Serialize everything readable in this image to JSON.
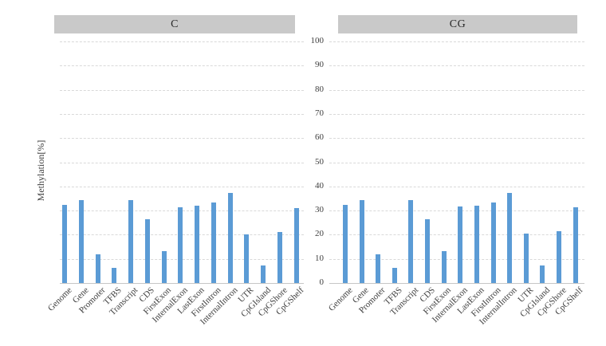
{
  "colors": {
    "bar": "#5B9BD5",
    "header_bg": "#C9C9C9",
    "grid": "#D9D9D9",
    "axis_line": "#C6C6C6",
    "text": "#404040"
  },
  "chart_data": {
    "type": "bar",
    "title": "",
    "ylabel": "Methylation[%]",
    "xlabel": "",
    "ylim": [
      0,
      100
    ],
    "y_ticks": [
      100,
      90,
      80,
      70,
      60,
      50,
      40,
      30,
      20,
      10,
      0
    ],
    "grid": "horizontal-dashed",
    "legend": "none",
    "layout": "two-facet-panels, shared y-axis tick labels between panels",
    "categories": [
      "Genome",
      "Gene",
      "Promoter",
      "TFBS",
      "Transcript",
      "CDS",
      "FirstExon",
      "InternalExon",
      "LastExon",
      "FirstIntron",
      "InternalIntron",
      "UTR",
      "CpGIsland",
      "CpGShore",
      "CpGShelf"
    ],
    "series": [
      {
        "name": "C",
        "values": [
          32.2,
          34.4,
          11.8,
          6.4,
          34.4,
          26.3,
          13.2,
          31.5,
          32.0,
          33.3,
          37.2,
          20.3,
          7.2,
          21.3,
          31.2
        ]
      },
      {
        "name": "CG",
        "values": [
          32.3,
          34.5,
          11.9,
          6.4,
          34.5,
          26.4,
          13.3,
          31.6,
          32.1,
          33.4,
          37.3,
          20.4,
          7.3,
          21.4,
          31.3
        ]
      }
    ]
  }
}
